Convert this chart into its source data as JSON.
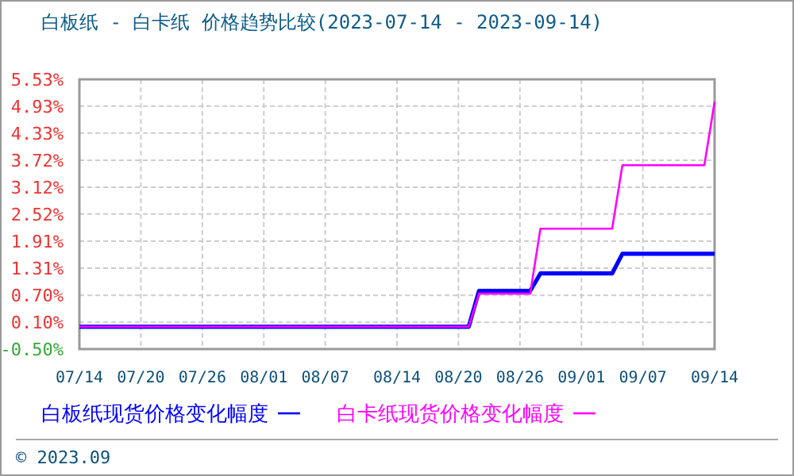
{
  "chart_data": {
    "type": "line",
    "title": "白板纸 - 白卡纸 价格趋势比较(2023-07-14 - 2023-09-14)",
    "x": [
      "2023-07-14",
      "2023-08-21",
      "2023-08-22",
      "2023-08-27",
      "2023-08-28",
      "2023-09-04",
      "2023-09-05",
      "2023-09-13",
      "2023-09-14"
    ],
    "series": [
      {
        "name": "白板纸现货价格变化幅度",
        "color": "#0000ff",
        "values": [
          0,
          0,
          0.8,
          0.8,
          1.19,
          1.19,
          1.63,
          1.63,
          1.63
        ]
      },
      {
        "name": "白卡纸现货价格变化幅度",
        "color": "#ff00ff",
        "values": [
          0,
          0,
          0.74,
          0.74,
          2.19,
          2.19,
          3.61,
          3.61,
          5.03
        ]
      }
    ],
    "xlim": [
      "2023-07-14",
      "2023-09-14"
    ],
    "xticks": [
      {
        "value": "2023-07-14",
        "label": "07/14"
      },
      {
        "value": "2023-07-20",
        "label": "07/20"
      },
      {
        "value": "2023-07-26",
        "label": "07/26"
      },
      {
        "value": "2023-08-01",
        "label": "08/01"
      },
      {
        "value": "2023-08-07",
        "label": "08/07"
      },
      {
        "value": "2023-08-14",
        "label": "08/14"
      },
      {
        "value": "2023-08-20",
        "label": "08/20"
      },
      {
        "value": "2023-08-26",
        "label": "08/26"
      },
      {
        "value": "2023-09-01",
        "label": "09/01"
      },
      {
        "value": "2023-09-07",
        "label": "09/07"
      },
      {
        "value": "2023-09-14",
        "label": "09/14"
      }
    ],
    "ylim": [
      -0.5,
      5.53
    ],
    "yticks": [
      {
        "value": -0.5,
        "label": "-0.50%"
      },
      {
        "value": 0.1,
        "label": "0.10%"
      },
      {
        "value": 0.7,
        "label": "0.70%"
      },
      {
        "value": 1.31,
        "label": "1.31%"
      },
      {
        "value": 1.91,
        "label": "1.91%"
      },
      {
        "value": 2.52,
        "label": "2.52%"
      },
      {
        "value": 3.12,
        "label": "3.12%"
      },
      {
        "value": 3.72,
        "label": "3.72%"
      },
      {
        "value": 4.33,
        "label": "4.33%"
      },
      {
        "value": 4.93,
        "label": "4.93%"
      },
      {
        "value": 5.53,
        "label": "5.53%"
      }
    ],
    "grid": true,
    "legend": "bottom",
    "marker": "none",
    "line_style": "solid",
    "annotations": [
      "© 2023.09"
    ]
  }
}
